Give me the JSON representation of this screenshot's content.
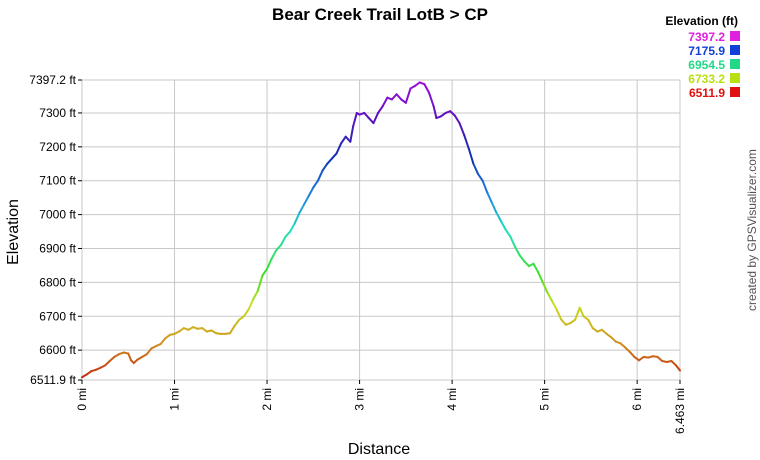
{
  "chart_data": {
    "type": "line",
    "title": "Bear Creek Trail LotB > CP",
    "xlabel": "Distance",
    "ylabel": "Elevation",
    "credit": "created by GPSVisualizer.com",
    "xlim": [
      0,
      6.463
    ],
    "ylim": [
      6511.9,
      7397.2
    ],
    "grid": true,
    "y_ticks": [
      {
        "value": 6511.9,
        "label": "6511.9 ft"
      },
      {
        "value": 6600,
        "label": "6600 ft"
      },
      {
        "value": 6700,
        "label": "6700 ft"
      },
      {
        "value": 6800,
        "label": "6800 ft"
      },
      {
        "value": 6900,
        "label": "6900 ft"
      },
      {
        "value": 7000,
        "label": "7000 ft"
      },
      {
        "value": 7100,
        "label": "7100 ft"
      },
      {
        "value": 7200,
        "label": "7200 ft"
      },
      {
        "value": 7300,
        "label": "7300 ft"
      },
      {
        "value": 7397.2,
        "label": "7397.2 ft"
      }
    ],
    "x_ticks": [
      {
        "value": 0,
        "label": "0 mi"
      },
      {
        "value": 1,
        "label": "1 mi"
      },
      {
        "value": 2,
        "label": "2 mi"
      },
      {
        "value": 3,
        "label": "3 mi"
      },
      {
        "value": 4,
        "label": "4 mi"
      },
      {
        "value": 5,
        "label": "5 mi"
      },
      {
        "value": 6,
        "label": "6 mi"
      },
      {
        "value": 6.463,
        "label": "6.463 mi"
      }
    ],
    "legend": {
      "title": "Elevation (ft)",
      "position": "top-right",
      "entries": [
        {
          "label": "7397.2",
          "color": "#e020e0"
        },
        {
          "label": "7175.9",
          "color": "#1040d8"
        },
        {
          "label": "6954.5",
          "color": "#20d888"
        },
        {
          "label": "6733.2",
          "color": "#b8e010"
        },
        {
          "label": "6511.9",
          "color": "#e01010"
        }
      ]
    },
    "color_scale": [
      {
        "value": 6511.9,
        "color": "#c02010"
      },
      {
        "value": 6620,
        "color": "#d09020"
      },
      {
        "value": 6733.2,
        "color": "#c8e020"
      },
      {
        "value": 6820,
        "color": "#40e020"
      },
      {
        "value": 6954.5,
        "color": "#20e0c0"
      },
      {
        "value": 7060,
        "color": "#2080e0"
      },
      {
        "value": 7175.9,
        "color": "#1030b0"
      },
      {
        "value": 7290,
        "color": "#6010c0"
      },
      {
        "value": 7397.2,
        "color": "#a010e0"
      }
    ],
    "series": [
      {
        "points": [
          [
            0.0,
            6520
          ],
          [
            0.05,
            6528
          ],
          [
            0.1,
            6538
          ],
          [
            0.15,
            6542
          ],
          [
            0.2,
            6548
          ],
          [
            0.25,
            6555
          ],
          [
            0.3,
            6568
          ],
          [
            0.35,
            6580
          ],
          [
            0.4,
            6588
          ],
          [
            0.45,
            6593
          ],
          [
            0.5,
            6590
          ],
          [
            0.53,
            6570
          ],
          [
            0.56,
            6562
          ],
          [
            0.6,
            6572
          ],
          [
            0.65,
            6580
          ],
          [
            0.7,
            6588
          ],
          [
            0.75,
            6605
          ],
          [
            0.8,
            6612
          ],
          [
            0.85,
            6618
          ],
          [
            0.9,
            6635
          ],
          [
            0.95,
            6645
          ],
          [
            1.0,
            6648
          ],
          [
            1.05,
            6655
          ],
          [
            1.1,
            6665
          ],
          [
            1.15,
            6660
          ],
          [
            1.2,
            6668
          ],
          [
            1.25,
            6663
          ],
          [
            1.3,
            6665
          ],
          [
            1.35,
            6655
          ],
          [
            1.4,
            6658
          ],
          [
            1.45,
            6650
          ],
          [
            1.5,
            6648
          ],
          [
            1.55,
            6648
          ],
          [
            1.6,
            6650
          ],
          [
            1.65,
            6672
          ],
          [
            1.7,
            6690
          ],
          [
            1.75,
            6700
          ],
          [
            1.8,
            6720
          ],
          [
            1.85,
            6750
          ],
          [
            1.9,
            6775
          ],
          [
            1.95,
            6820
          ],
          [
            2.0,
            6840
          ],
          [
            2.05,
            6870
          ],
          [
            2.1,
            6895
          ],
          [
            2.15,
            6910
          ],
          [
            2.2,
            6935
          ],
          [
            2.25,
            6950
          ],
          [
            2.3,
            6975
          ],
          [
            2.35,
            7005
          ],
          [
            2.4,
            7030
          ],
          [
            2.45,
            7055
          ],
          [
            2.5,
            7080
          ],
          [
            2.55,
            7100
          ],
          [
            2.6,
            7130
          ],
          [
            2.65,
            7150
          ],
          [
            2.7,
            7165
          ],
          [
            2.75,
            7180
          ],
          [
            2.8,
            7210
          ],
          [
            2.85,
            7230
          ],
          [
            2.9,
            7215
          ],
          [
            2.93,
            7260
          ],
          [
            2.97,
            7300
          ],
          [
            3.0,
            7295
          ],
          [
            3.05,
            7300
          ],
          [
            3.1,
            7285
          ],
          [
            3.15,
            7270
          ],
          [
            3.2,
            7300
          ],
          [
            3.25,
            7320
          ],
          [
            3.3,
            7345
          ],
          [
            3.35,
            7340
          ],
          [
            3.4,
            7355
          ],
          [
            3.45,
            7340
          ],
          [
            3.5,
            7330
          ],
          [
            3.55,
            7372
          ],
          [
            3.6,
            7380
          ],
          [
            3.65,
            7390
          ],
          [
            3.7,
            7385
          ],
          [
            3.75,
            7360
          ],
          [
            3.8,
            7320
          ],
          [
            3.83,
            7285
          ],
          [
            3.88,
            7290
          ],
          [
            3.93,
            7300
          ],
          [
            3.98,
            7305
          ],
          [
            4.03,
            7292
          ],
          [
            4.08,
            7270
          ],
          [
            4.13,
            7235
          ],
          [
            4.18,
            7195
          ],
          [
            4.23,
            7150
          ],
          [
            4.28,
            7120
          ],
          [
            4.33,
            7100
          ],
          [
            4.38,
            7065
          ],
          [
            4.43,
            7035
          ],
          [
            4.48,
            7005
          ],
          [
            4.53,
            6980
          ],
          [
            4.58,
            6955
          ],
          [
            4.63,
            6935
          ],
          [
            4.68,
            6905
          ],
          [
            4.73,
            6880
          ],
          [
            4.78,
            6862
          ],
          [
            4.83,
            6848
          ],
          [
            4.88,
            6855
          ],
          [
            4.93,
            6830
          ],
          [
            4.98,
            6800
          ],
          [
            5.03,
            6770
          ],
          [
            5.08,
            6745
          ],
          [
            5.13,
            6720
          ],
          [
            5.18,
            6690
          ],
          [
            5.23,
            6675
          ],
          [
            5.28,
            6680
          ],
          [
            5.33,
            6690
          ],
          [
            5.38,
            6725
          ],
          [
            5.42,
            6700
          ],
          [
            5.47,
            6690
          ],
          [
            5.52,
            6665
          ],
          [
            5.57,
            6655
          ],
          [
            5.62,
            6660
          ],
          [
            5.67,
            6648
          ],
          [
            5.72,
            6638
          ],
          [
            5.77,
            6625
          ],
          [
            5.82,
            6620
          ],
          [
            5.87,
            6608
          ],
          [
            5.92,
            6595
          ],
          [
            5.97,
            6580
          ],
          [
            6.02,
            6570
          ],
          [
            6.07,
            6580
          ],
          [
            6.12,
            6578
          ],
          [
            6.17,
            6582
          ],
          [
            6.22,
            6580
          ],
          [
            6.27,
            6568
          ],
          [
            6.32,
            6565
          ],
          [
            6.37,
            6568
          ],
          [
            6.42,
            6555
          ],
          [
            6.463,
            6540
          ]
        ]
      }
    ]
  }
}
